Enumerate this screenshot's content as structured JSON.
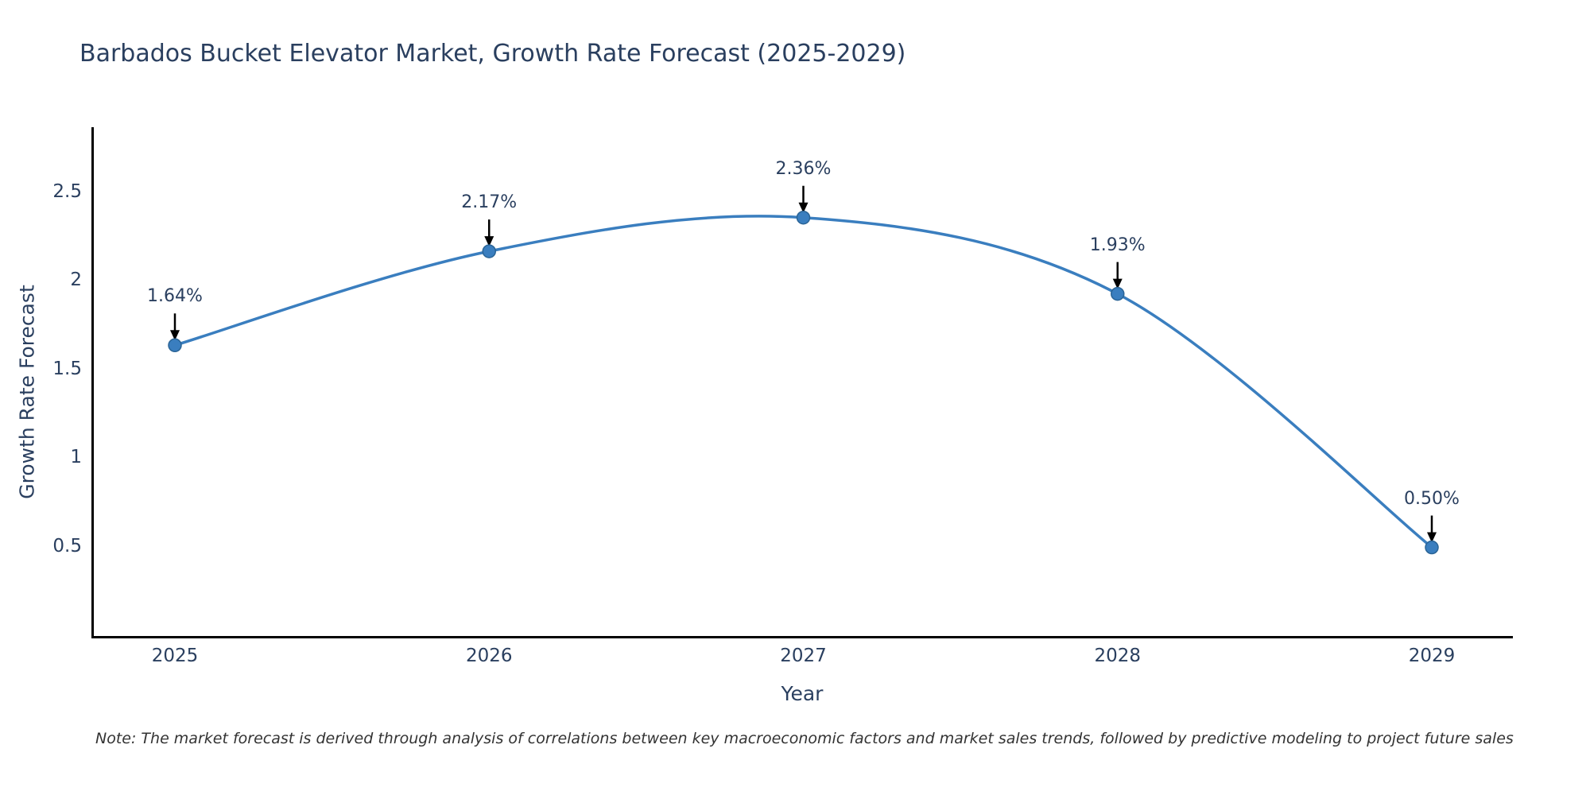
{
  "title": "Barbados Bucket Elevator Market, Growth Rate Forecast (2025-2029)",
  "note": "Note: The market forecast is derived through analysis of correlations between key macroeconomic factors and market sales trends, followed by predictive modeling to project future sales",
  "chart_data": {
    "type": "line",
    "title": "Barbados Bucket Elevator Market, Growth Rate Forecast (2025-2029)",
    "x": [
      2025,
      2026,
      2027,
      2028,
      2029
    ],
    "values": [
      1.64,
      2.17,
      2.36,
      1.93,
      0.5
    ],
    "point_labels": [
      "1.64%",
      "2.17%",
      "2.36%",
      "1.93%",
      "0.50%"
    ],
    "xtick_labels": [
      "2025",
      "2026",
      "2027",
      "2028",
      "2029"
    ],
    "ytick_values": [
      0.5,
      1,
      1.5,
      2,
      2.5
    ],
    "ytick_labels": [
      "0.5",
      "1",
      "1.5",
      "2",
      "2.5"
    ],
    "xlabel": "Year",
    "ylabel": "Growth Rate Forecast",
    "ylim": [
      0,
      2.87
    ],
    "line_shape": "spline",
    "grid": false,
    "legend": "none",
    "markers": true,
    "annotation_arrows": true,
    "colors": {
      "line": "#3a7ebf",
      "marker_fill": "#3a7ebf",
      "marker_edge": "#2a6496",
      "arrow": "#000000",
      "axis_line": "#000000",
      "title_text": "#2a3f5f",
      "tick_text": "#2a3f5f",
      "note_text": "#333333"
    }
  }
}
